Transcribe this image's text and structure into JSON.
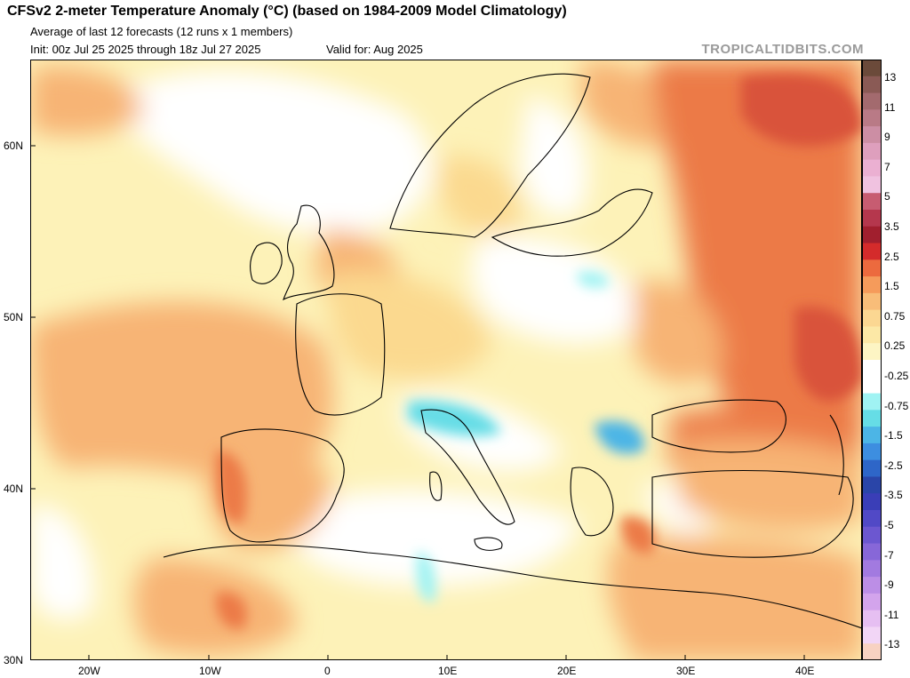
{
  "header": {
    "title": "CFSv2 2-meter Temperature Anomaly (°C) (based on 1984-2009 Model Climatology)",
    "subtitle": "Average of last 12 forecasts (12 runs x 1 members)",
    "init": "Init: 00z Jul 25 2025 through 18z Jul 27 2025",
    "valid": "Valid for: Aug 2025",
    "brand": "TROPICALTIDBITS.COM"
  },
  "map": {
    "lat_range": [
      30,
      65
    ],
    "lon_range": [
      -25,
      45
    ],
    "lat_labels": [
      "60N",
      "50N",
      "40N",
      "30N"
    ],
    "lon_labels": [
      "20W",
      "10W",
      "0",
      "10E",
      "20E",
      "30E",
      "40E"
    ],
    "colors": {
      "neg_light": "#a8f0f0",
      "neg_mid": "#58d8e8",
      "neg_strong": "#3f8fd6",
      "neutral": "#ffffff",
      "pos_025": "#fdf2b8",
      "pos_075": "#fbd98f",
      "pos_15": "#f7b475",
      "pos_25": "#ec7a47",
      "pos_35": "#d9533a",
      "border": "#000000"
    }
  },
  "legend": {
    "labels": [
      "13",
      "11",
      "9",
      "7",
      "5",
      "3.5",
      "2.5",
      "1.5",
      "0.75",
      "0.25",
      "-0.25",
      "-0.75",
      "-1.5",
      "-2.5",
      "-3.5",
      "-5",
      "-7",
      "-9",
      "-11",
      "-13"
    ],
    "colors": [
      "#6b4a3a",
      "#8a5a55",
      "#a36a6e",
      "#b97a86",
      "#cc8ea4",
      "#de9fbd",
      "#ebb0d2",
      "#f0c2e0",
      "#c75c71",
      "#b5374d",
      "#a11f2e",
      "#d42b2b",
      "#ec6a3e",
      "#f59b5b",
      "#f8bd79",
      "#fbd792",
      "#fce8a6",
      "#fdf5c4",
      "#ffffff",
      "#ffffff",
      "#a0f3f3",
      "#66dde6",
      "#4cb5e6",
      "#3d8ee0",
      "#2e66c8",
      "#2a45a8",
      "#3a3eb7",
      "#5149c6",
      "#6c57d0",
      "#8767d8",
      "#a27ae0",
      "#bc8ee6",
      "#d3a4ec",
      "#e6bff2",
      "#f2d6f6",
      "#f8d2c2"
    ]
  }
}
